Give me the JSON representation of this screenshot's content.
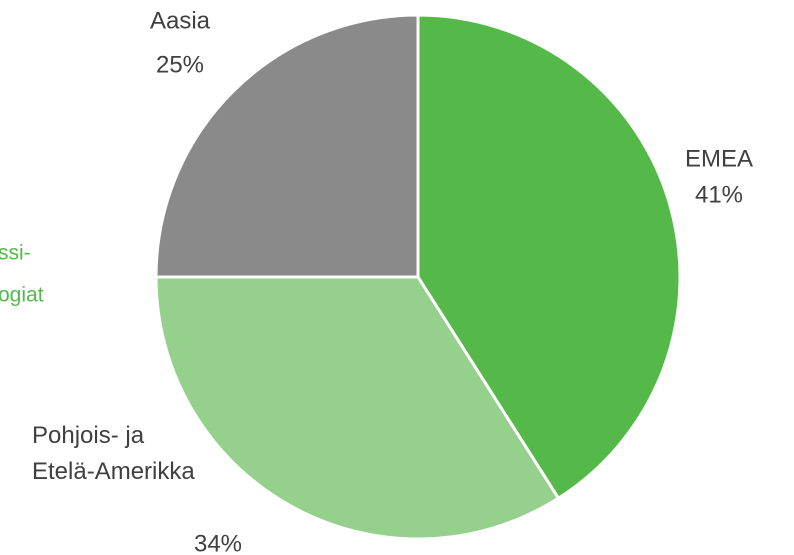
{
  "chart_data": {
    "type": "pie",
    "categories": [
      "EMEA",
      "Pohjois- ja Etelä-Amerikka",
      "Aasia"
    ],
    "values": [
      41,
      34,
      25
    ],
    "value_labels": [
      "41%",
      "34%",
      "25%"
    ],
    "colors": [
      "#55b94a",
      "#95d18c",
      "#8a8a8b"
    ],
    "annotations": [
      "ssi-",
      "ogiat"
    ]
  }
}
